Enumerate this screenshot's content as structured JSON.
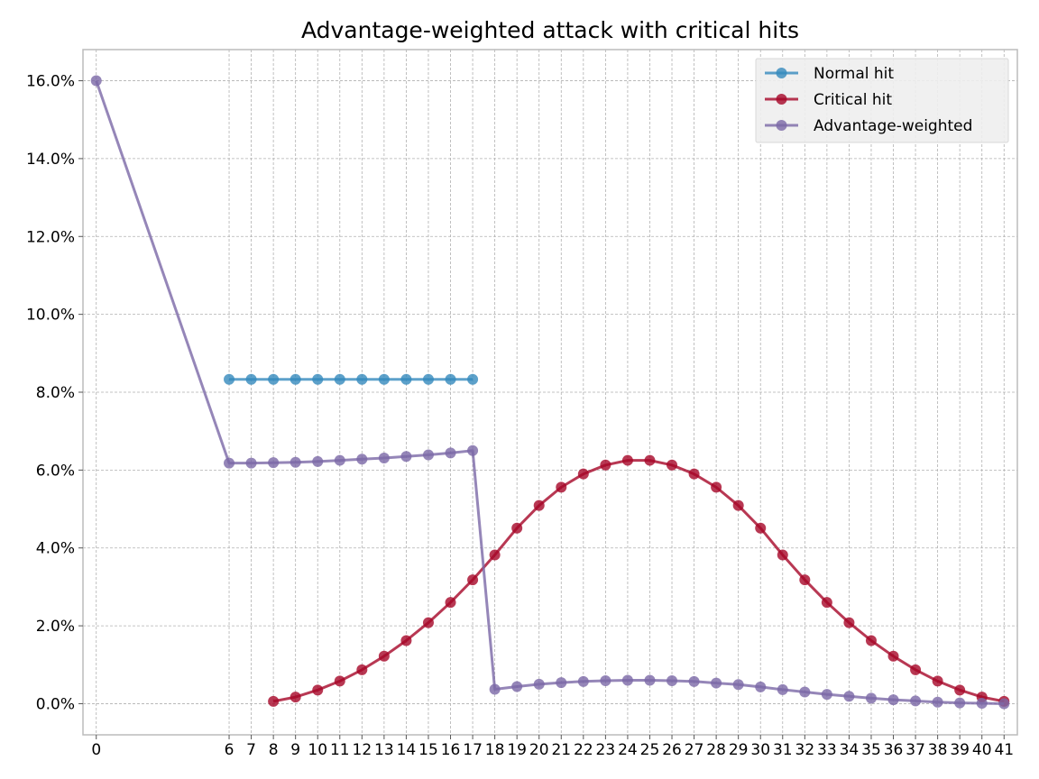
{
  "chart_data": {
    "type": "line",
    "title": "Advantage-weighted attack with critical hits",
    "xlabel": "",
    "ylabel": "",
    "xlim": [
      -0.6,
      41.6
    ],
    "ylim": [
      -0.8,
      16.8
    ],
    "y_ticks": [
      0,
      2,
      4,
      6,
      8,
      10,
      12,
      14,
      16
    ],
    "y_tick_labels": [
      "0.0%",
      "2.0%",
      "4.0%",
      "6.0%",
      "8.0%",
      "10.0%",
      "12.0%",
      "14.0%",
      "16.0%"
    ],
    "x_ticks": [
      0,
      6,
      7,
      8,
      9,
      10,
      11,
      12,
      13,
      14,
      15,
      16,
      17,
      18,
      19,
      20,
      21,
      22,
      23,
      24,
      25,
      26,
      27,
      28,
      29,
      30,
      31,
      32,
      33,
      34,
      35,
      36,
      37,
      38,
      39,
      40,
      41
    ],
    "x_tick_labels": [
      "0",
      "6",
      "7",
      "8",
      "9",
      "10",
      "11",
      "12",
      "13",
      "14",
      "15",
      "16",
      "17",
      "18",
      "19",
      "20",
      "21",
      "22",
      "23",
      "24",
      "25",
      "26",
      "27",
      "28",
      "29",
      "30",
      "31",
      "32",
      "33",
      "34",
      "35",
      "36",
      "37",
      "38",
      "39",
      "40",
      "41"
    ],
    "grid": true,
    "legend_position": "top-right",
    "series": [
      {
        "name": "Normal hit",
        "color": "#348abd",
        "x": [
          6,
          7,
          8,
          9,
          10,
          11,
          12,
          13,
          14,
          15,
          16,
          17
        ],
        "y": [
          8.33,
          8.33,
          8.33,
          8.33,
          8.33,
          8.33,
          8.33,
          8.33,
          8.33,
          8.33,
          8.33,
          8.33
        ]
      },
      {
        "name": "Critical hit",
        "color": "#a60628",
        "x": [
          8,
          9,
          10,
          11,
          12,
          13,
          14,
          15,
          16,
          17,
          18,
          19,
          20,
          21,
          22,
          23,
          24,
          25,
          26,
          27,
          28,
          29,
          30,
          31,
          32,
          33,
          34,
          35,
          36,
          37,
          38,
          39,
          40,
          41
        ],
        "y": [
          0.06,
          0.17,
          0.35,
          0.58,
          0.87,
          1.22,
          1.62,
          2.08,
          2.6,
          3.18,
          3.82,
          4.51,
          5.09,
          5.56,
          5.9,
          6.13,
          6.25,
          6.25,
          6.13,
          5.9,
          5.56,
          5.09,
          4.51,
          3.82,
          3.18,
          2.6,
          2.08,
          1.62,
          1.22,
          0.87,
          0.58,
          0.35,
          0.17,
          0.06
        ]
      },
      {
        "name": "Advantage-weighted",
        "color": "#7a68a6",
        "x": [
          0,
          6,
          7,
          8,
          9,
          10,
          11,
          12,
          13,
          14,
          15,
          16,
          17,
          18,
          19,
          20,
          21,
          22,
          23,
          24,
          25,
          26,
          27,
          28,
          29,
          30,
          31,
          32,
          33,
          34,
          35,
          36,
          37,
          38,
          39,
          40,
          41
        ],
        "y": [
          16.0,
          6.18,
          6.18,
          6.19,
          6.2,
          6.22,
          6.25,
          6.28,
          6.31,
          6.35,
          6.39,
          6.44,
          6.5,
          0.37,
          0.44,
          0.5,
          0.54,
          0.57,
          0.59,
          0.6,
          0.6,
          0.59,
          0.57,
          0.53,
          0.49,
          0.43,
          0.36,
          0.3,
          0.24,
          0.19,
          0.14,
          0.1,
          0.07,
          0.04,
          0.02,
          0.01,
          0.0
        ]
      }
    ]
  }
}
